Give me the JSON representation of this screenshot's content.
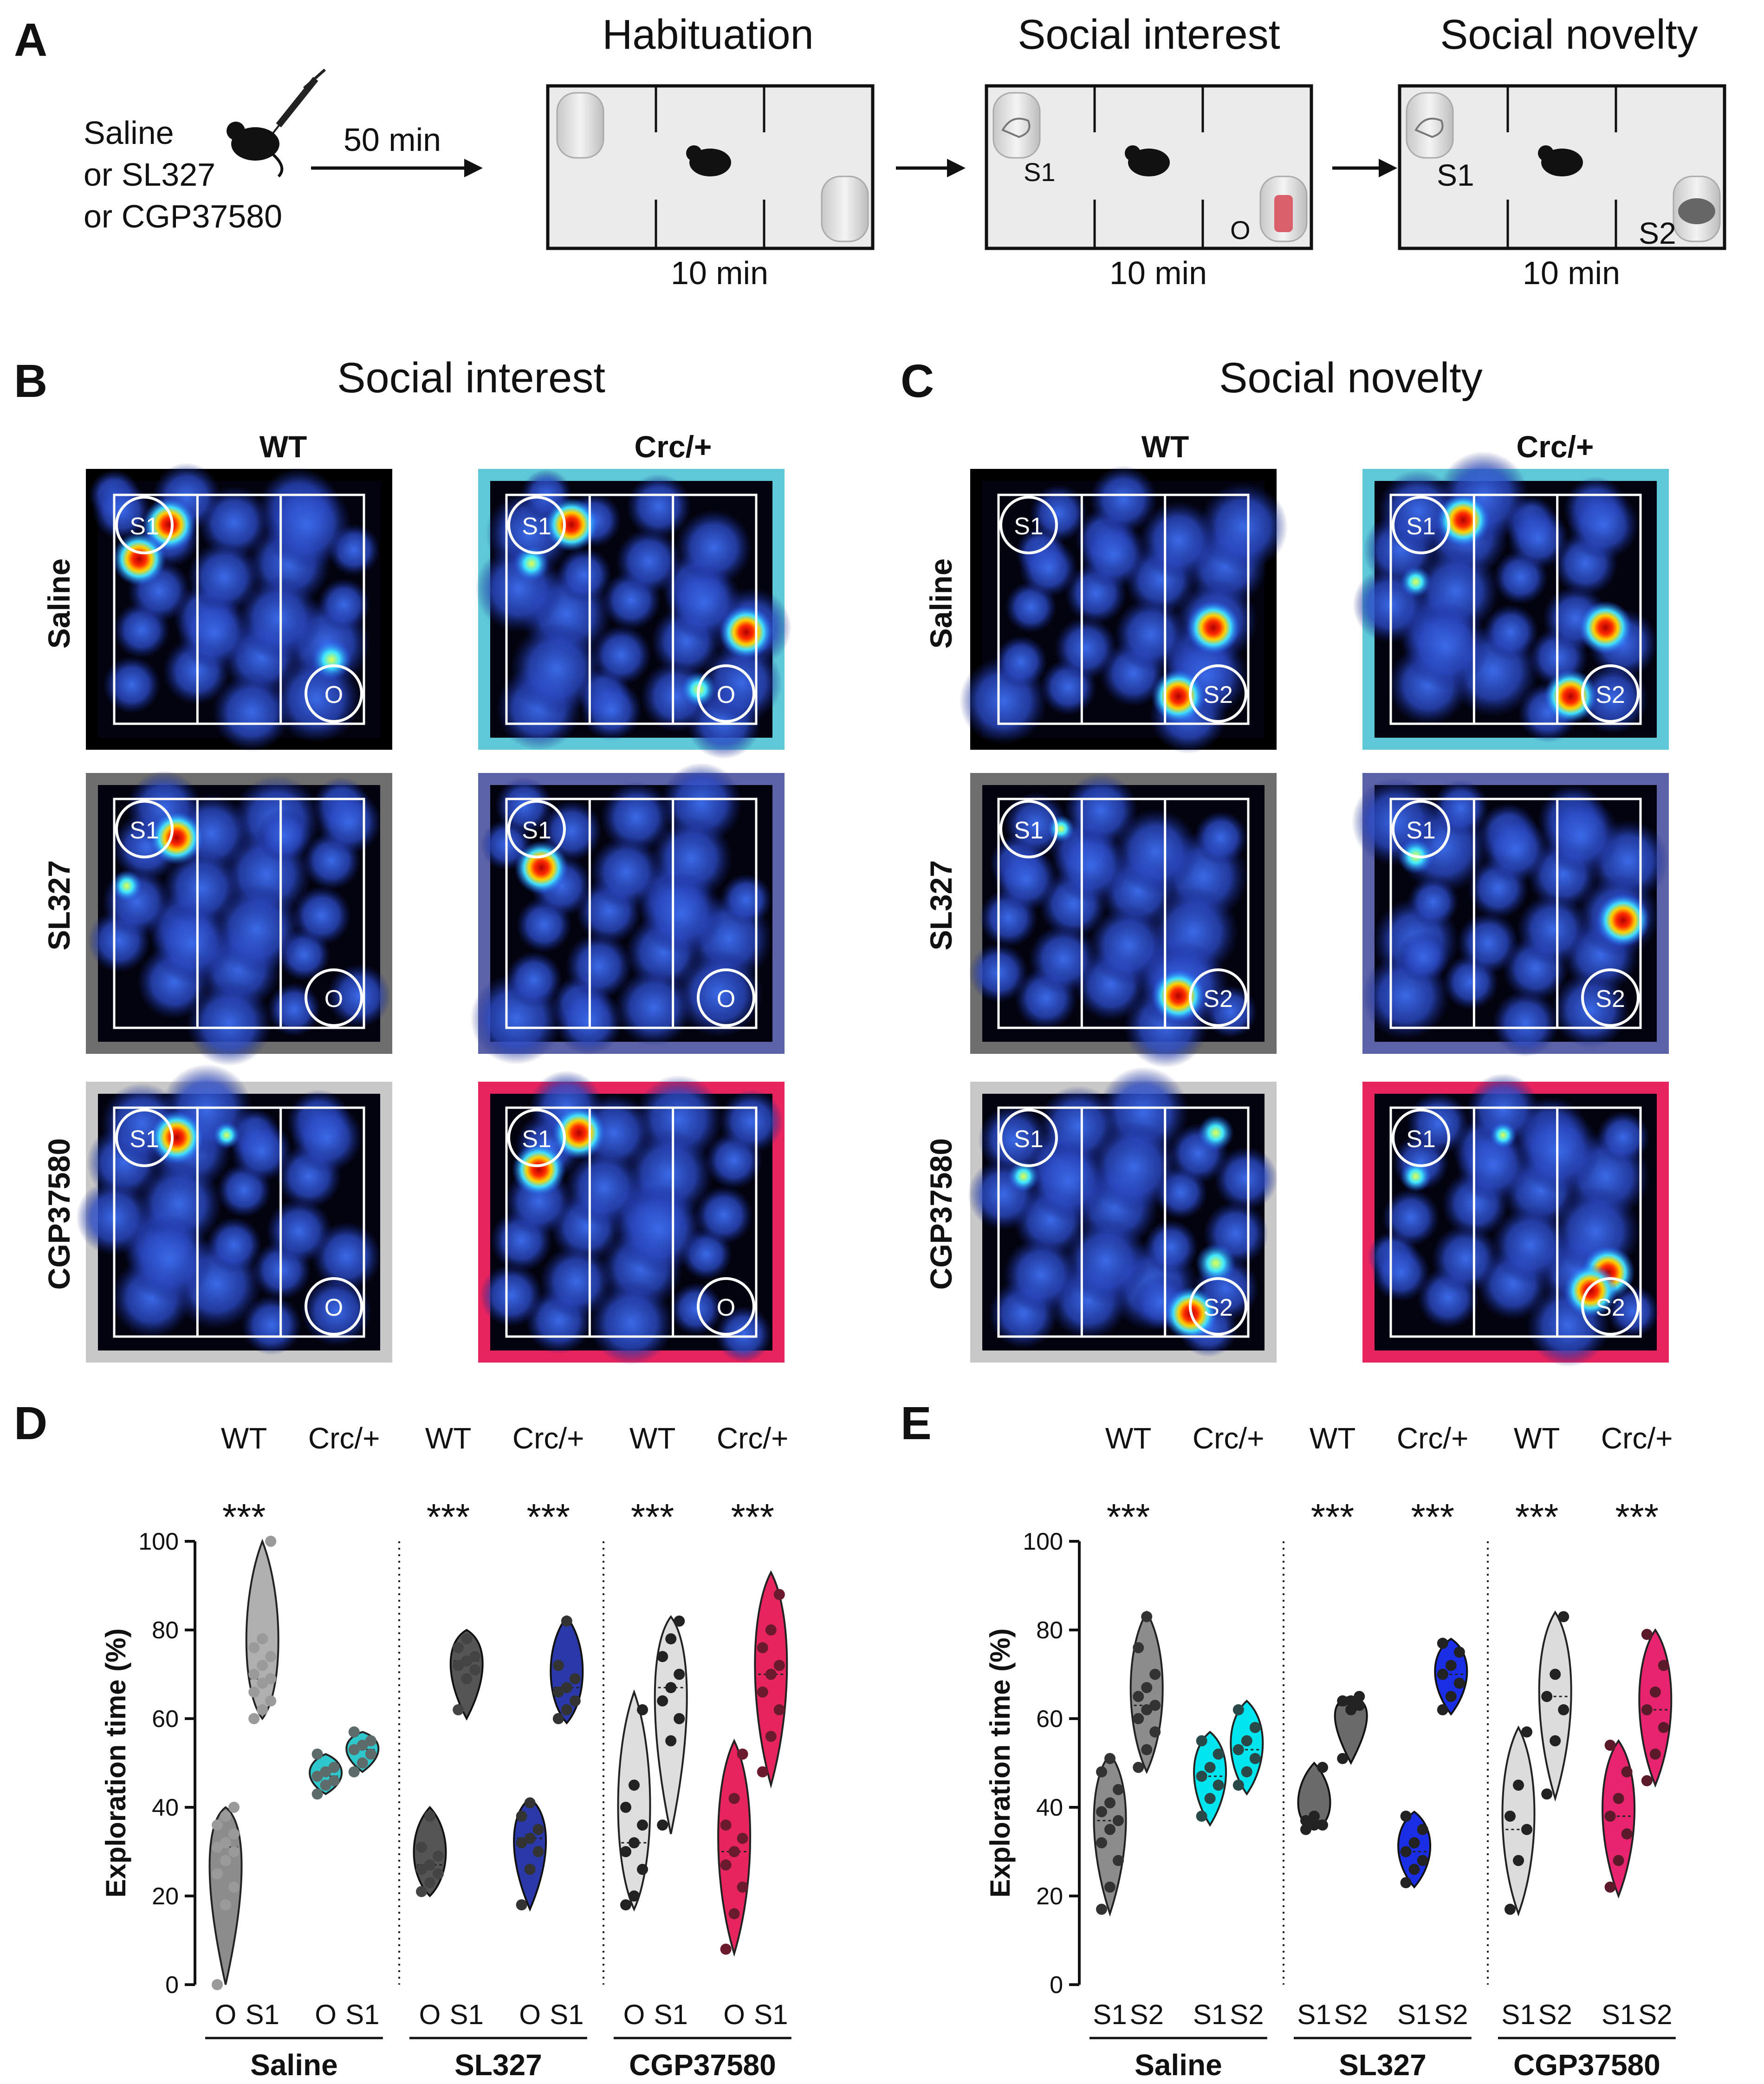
{
  "panel_a": {
    "letter": "A",
    "treatments": [
      "Saline",
      "or SL327",
      "or CGP37580"
    ],
    "delay": "50 min",
    "stages": [
      {
        "title": "Habituation",
        "duration": "10 min",
        "labels": []
      },
      {
        "title": "Social interest",
        "duration": "10 min",
        "labels": [
          "S1",
          "O"
        ]
      },
      {
        "title": "Social novelty",
        "duration": "10 min",
        "labels": [
          "S1",
          "S2"
        ]
      }
    ]
  },
  "panel_b": {
    "letter": "B",
    "title": "Social interest",
    "columns": [
      "WT",
      "Crc/+"
    ],
    "rows": [
      "Saline",
      "SL327",
      "CGP37580"
    ],
    "circle_labels": [
      "S1",
      "O"
    ]
  },
  "panel_c": {
    "letter": "C",
    "title": "Social novelty",
    "columns": [
      "WT",
      "Crc/+"
    ],
    "rows": [
      "Saline",
      "SL327",
      "CGP37580"
    ],
    "circle_labels": [
      "S1",
      "S2"
    ]
  },
  "frame_colors": {
    "wt_saline": "#000000",
    "crc_saline": "#5ec8d8",
    "wt_sl327": "#6e6e6e",
    "crc_sl327": "#5b62a8",
    "wt_cgp": "#c8c8c8",
    "crc_cgp": "#e8245f"
  },
  "chart_data": [
    {
      "panel": "D",
      "type": "violin",
      "ylabel": "Exploration time (%)",
      "ylim": [
        0,
        100
      ],
      "yticks": [
        0,
        20,
        40,
        60,
        80,
        100
      ],
      "significance": "***",
      "groups": [
        {
          "name": "Saline",
          "genotypes": [
            "WT",
            "Crc/+"
          ],
          "sig": [
            "***",
            ""
          ],
          "violins": [
            {
              "label": "O",
              "genotype": "WT",
              "color": "#8c8c8c",
              "edge": "#222222",
              "dot": "#9a9a9a",
              "min": 0,
              "max": 40,
              "median": 31,
              "values": [
                0,
                18,
                22,
                25,
                28,
                30,
                31,
                32,
                34,
                36,
                38,
                40
              ]
            },
            {
              "label": "S1",
              "genotype": "WT",
              "color": "#b0b0b0",
              "edge": "#222222",
              "dot": "#9a9a9a",
              "min": 60,
              "max": 100,
              "median": 69,
              "values": [
                60,
                62,
                64,
                66,
                68,
                69,
                70,
                72,
                74,
                76,
                78,
                100
              ]
            },
            {
              "label": "O",
              "genotype": "Crc/+",
              "color": "#2ec7cc",
              "edge": "#222222",
              "dot": "#5d6b6b",
              "min": 43,
              "max": 52,
              "median": 47,
              "values": [
                43,
                45,
                46,
                47,
                48,
                49,
                52
              ]
            },
            {
              "label": "S1",
              "genotype": "Crc/+",
              "color": "#2ec7cc",
              "edge": "#222222",
              "dot": "#5d6b6b",
              "min": 48,
              "max": 57,
              "median": 53,
              "values": [
                48,
                50,
                52,
                53,
                54,
                55,
                57
              ]
            }
          ]
        },
        {
          "name": "SL327",
          "genotypes": [
            "WT",
            "Crc/+"
          ],
          "sig": [
            "***",
            "***"
          ],
          "violins": [
            {
              "label": "O",
              "genotype": "WT",
              "color": "#555555",
              "edge": "#111111",
              "dot": "#444444",
              "min": 20,
              "max": 40,
              "median": 27,
              "values": [
                21,
                23,
                25,
                26,
                27,
                29,
                31,
                38
              ]
            },
            {
              "label": "S1",
              "genotype": "WT",
              "color": "#555555",
              "edge": "#111111",
              "dot": "#444444",
              "min": 60,
              "max": 80,
              "median": 73,
              "values": [
                62,
                69,
                71,
                72,
                73,
                74,
                76,
                78
              ]
            },
            {
              "label": "O",
              "genotype": "Crc/+",
              "color": "#2a38a8",
              "edge": "#111111",
              "dot": "#333333",
              "min": 17,
              "max": 42,
              "median": 33,
              "values": [
                18,
                26,
                30,
                32,
                33,
                35,
                38,
                41
              ]
            },
            {
              "label": "S1",
              "genotype": "Crc/+",
              "color": "#2a38a8",
              "edge": "#111111",
              "dot": "#333333",
              "min": 59,
              "max": 83,
              "median": 67,
              "values": [
                60,
                62,
                64,
                66,
                67,
                69,
                72,
                82
              ]
            }
          ]
        },
        {
          "name": "CGP37580",
          "genotypes": [
            "WT",
            "Crc/+"
          ],
          "sig": [
            "***",
            "***"
          ],
          "violins": [
            {
              "label": "O",
              "genotype": "WT",
              "color": "#dedede",
              "edge": "#222222",
              "dot": "#222222",
              "min": 17,
              "max": 66,
              "median": 32,
              "values": [
                18,
                20,
                26,
                30,
                32,
                36,
                40,
                45,
                62
              ]
            },
            {
              "label": "S1",
              "genotype": "WT",
              "color": "#dedede",
              "edge": "#222222",
              "dot": "#222222",
              "min": 34,
              "max": 83,
              "median": 67,
              "values": [
                36,
                55,
                60,
                64,
                67,
                70,
                74,
                78,
                82
              ]
            },
            {
              "label": "O",
              "genotype": "Crc/+",
              "color": "#e8245f",
              "edge": "#222222",
              "dot": "#6a1a2a",
              "min": 7,
              "max": 55,
              "median": 30,
              "values": [
                8,
                16,
                22,
                27,
                30,
                33,
                36,
                42,
                52
              ]
            },
            {
              "label": "S1",
              "genotype": "Crc/+",
              "color": "#e8245f",
              "edge": "#222222",
              "dot": "#6a1a2a",
              "min": 45,
              "max": 93,
              "median": 70,
              "values": [
                48,
                56,
                62,
                66,
                70,
                72,
                76,
                80,
                88
              ]
            }
          ]
        }
      ]
    },
    {
      "panel": "E",
      "type": "violin",
      "ylabel": "Exploration time (%)",
      "ylim": [
        0,
        100
      ],
      "yticks": [
        0,
        20,
        40,
        60,
        80,
        100
      ],
      "significance": "***",
      "groups": [
        {
          "name": "Saline",
          "genotypes": [
            "WT",
            "Crc/+"
          ],
          "sig": [
            "***",
            ""
          ],
          "violins": [
            {
              "label": "S1",
              "genotype": "WT",
              "color": "#8c8c8c",
              "edge": "#222222",
              "dot": "#333333",
              "min": 16,
              "max": 52,
              "median": 37,
              "values": [
                17,
                22,
                28,
                32,
                35,
                37,
                39,
                41,
                44,
                48,
                51
              ]
            },
            {
              "label": "S2",
              "genotype": "WT",
              "color": "#8c8c8c",
              "edge": "#222222",
              "dot": "#333333",
              "min": 48,
              "max": 84,
              "median": 63,
              "values": [
                49,
                53,
                57,
                60,
                62,
                63,
                65,
                67,
                70,
                76,
                83
              ]
            },
            {
              "label": "S1",
              "genotype": "Crc/+",
              "color": "#00e5ee",
              "edge": "#222222",
              "dot": "#2a4a4a",
              "min": 36,
              "max": 57,
              "median": 47,
              "values": [
                38,
                42,
                45,
                47,
                49,
                52,
                55
              ]
            },
            {
              "label": "S2",
              "genotype": "Crc/+",
              "color": "#00e5ee",
              "edge": "#222222",
              "dot": "#2a4a4a",
              "min": 43,
              "max": 64,
              "median": 53,
              "values": [
                45,
                48,
                51,
                53,
                55,
                58,
                62
              ]
            }
          ]
        },
        {
          "name": "SL327",
          "genotypes": [
            "WT",
            "Crc/+"
          ],
          "sig": [
            "***",
            "***"
          ],
          "violins": [
            {
              "label": "S1",
              "genotype": "WT",
              "color": "#6a6a6a",
              "edge": "#111111",
              "dot": "#222222",
              "min": 35,
              "max": 50,
              "median": 37,
              "values": [
                35,
                36,
                36,
                37,
                38,
                49
              ]
            },
            {
              "label": "S2",
              "genotype": "WT",
              "color": "#6a6a6a",
              "edge": "#111111",
              "dot": "#222222",
              "min": 50,
              "max": 65,
              "median": 63,
              "values": [
                51,
                62,
                63,
                64,
                64,
                65
              ]
            },
            {
              "label": "S1",
              "genotype": "Crc/+",
              "color": "#1a2ee6",
              "edge": "#111111",
              "dot": "#222222",
              "min": 22,
              "max": 39,
              "median": 30,
              "values": [
                23,
                26,
                28,
                30,
                32,
                35,
                38
              ]
            },
            {
              "label": "S2",
              "genotype": "Crc/+",
              "color": "#1a2ee6",
              "edge": "#111111",
              "dot": "#222222",
              "min": 61,
              "max": 78,
              "median": 70,
              "values": [
                62,
                65,
                68,
                70,
                72,
                75,
                77
              ]
            }
          ]
        },
        {
          "name": "CGP37580",
          "genotypes": [
            "WT",
            "Crc/+"
          ],
          "sig": [
            "***",
            "***"
          ],
          "violins": [
            {
              "label": "S1",
              "genotype": "WT",
              "color": "#dcdcdc",
              "edge": "#222222",
              "dot": "#222222",
              "min": 16,
              "max": 58,
              "median": 35,
              "values": [
                17,
                28,
                35,
                38,
                45,
                57
              ]
            },
            {
              "label": "S2",
              "genotype": "WT",
              "color": "#dcdcdc",
              "edge": "#222222",
              "dot": "#222222",
              "min": 42,
              "max": 84,
              "median": 65,
              "values": [
                43,
                55,
                62,
                65,
                70,
                83
              ]
            },
            {
              "label": "S1",
              "genotype": "Crc/+",
              "color": "#e8246e",
              "edge": "#222222",
              "dot": "#5a1a2a",
              "min": 20,
              "max": 55,
              "median": 38,
              "values": [
                22,
                28,
                34,
                38,
                42,
                48,
                54
              ]
            },
            {
              "label": "S2",
              "genotype": "Crc/+",
              "color": "#e8246e",
              "edge": "#222222",
              "dot": "#5a1a2a",
              "min": 45,
              "max": 80,
              "median": 62,
              "values": [
                46,
                52,
                58,
                62,
                66,
                72,
                79
              ]
            }
          ]
        }
      ]
    }
  ]
}
